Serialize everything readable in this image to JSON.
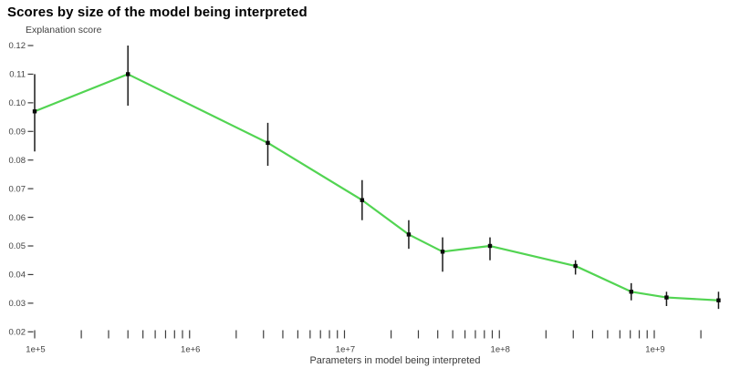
{
  "header": {
    "title": "Scores by size of the model being interpreted"
  },
  "chart_data": {
    "type": "line",
    "title": "Scores by size of the model being interpreted",
    "ylabel": "Explanation score",
    "xlabel": "Parameters in model being interpreted",
    "x_scale": "log",
    "xlim": [
      100000,
      3000000000
    ],
    "ylim": [
      0.02,
      0.12
    ],
    "grid": false,
    "legend": "none",
    "line_color": "#52d452",
    "marker_color": "#0a0a0a",
    "error_bar_color": "#1a1a1a",
    "tick_color": "#3c3c3c",
    "tick_label_color": "#424242",
    "y_ticks": [
      {
        "value": 0.12,
        "label": "0.12"
      },
      {
        "value": 0.11,
        "label": "0.11"
      },
      {
        "value": 0.1,
        "label": "0.10"
      },
      {
        "value": 0.09,
        "label": "0.09"
      },
      {
        "value": 0.08,
        "label": "0.08"
      },
      {
        "value": 0.07,
        "label": "0.07"
      },
      {
        "value": 0.06,
        "label": "0.06"
      },
      {
        "value": 0.05,
        "label": "0.05"
      },
      {
        "value": 0.04,
        "label": "0.04"
      },
      {
        "value": 0.03,
        "label": "0.03"
      },
      {
        "value": 0.02,
        "label": "0.02"
      }
    ],
    "x_minor_ticks": [
      100000,
      200000,
      300000,
      400000,
      500000,
      600000,
      700000,
      800000,
      900000,
      1000000,
      2000000,
      3000000,
      4000000,
      5000000,
      6000000,
      7000000,
      8000000,
      9000000,
      10000000,
      20000000,
      30000000,
      40000000,
      50000000,
      60000000,
      70000000,
      80000000,
      90000000,
      100000000,
      200000000,
      300000000,
      400000000,
      500000000,
      600000000,
      700000000,
      800000000,
      900000000,
      1000000000,
      2000000000
    ],
    "x_tick_labels": [
      {
        "value": 100000,
        "label": "1e+5"
      },
      {
        "value": 1000000,
        "label": "1e+6"
      },
      {
        "value": 10000000,
        "label": "1e+7"
      },
      {
        "value": 100000000,
        "label": "1e+8"
      },
      {
        "value": 1000000000,
        "label": "1e+9"
      }
    ],
    "series": [
      {
        "name": "Explanation score",
        "points": [
          {
            "params": 100000,
            "score": 0.097,
            "err_low": 0.083,
            "err_high": 0.11
          },
          {
            "params": 400000,
            "score": 0.11,
            "err_low": 0.099,
            "err_high": 0.12
          },
          {
            "params": 3200000,
            "score": 0.086,
            "err_low": 0.078,
            "err_high": 0.093
          },
          {
            "params": 13000000,
            "score": 0.066,
            "err_low": 0.059,
            "err_high": 0.073
          },
          {
            "params": 26000000,
            "score": 0.054,
            "err_low": 0.049,
            "err_high": 0.059
          },
          {
            "params": 43000000,
            "score": 0.048,
            "err_low": 0.041,
            "err_high": 0.053
          },
          {
            "params": 87000000,
            "score": 0.05,
            "err_low": 0.045,
            "err_high": 0.053
          },
          {
            "params": 310000000,
            "score": 0.043,
            "err_low": 0.04,
            "err_high": 0.045
          },
          {
            "params": 710000000,
            "score": 0.034,
            "err_low": 0.031,
            "err_high": 0.037
          },
          {
            "params": 1200000000,
            "score": 0.032,
            "err_low": 0.029,
            "err_high": 0.034
          },
          {
            "params": 2600000000,
            "score": 0.031,
            "err_low": 0.028,
            "err_high": 0.034
          }
        ]
      }
    ]
  }
}
